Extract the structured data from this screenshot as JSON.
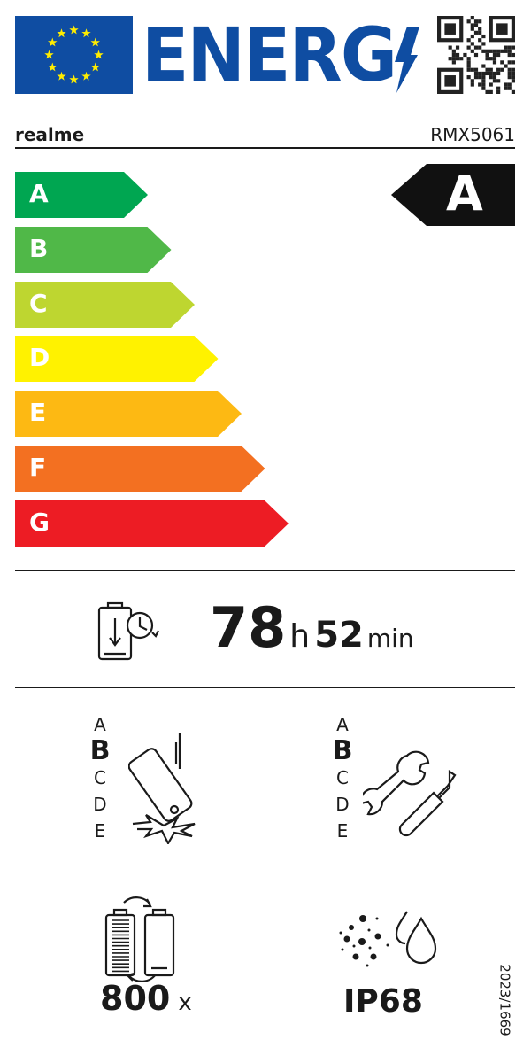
{
  "header": {
    "title": "ENERG",
    "eu_flag": "eu-flag-icon",
    "qr": "qr-code-icon"
  },
  "supplier": {
    "brand": "realme",
    "model": "RMX5061"
  },
  "energy_scale": {
    "classes": [
      {
        "label": "A",
        "color": "#00a651"
      },
      {
        "label": "B",
        "color": "#50b848"
      },
      {
        "label": "C",
        "color": "#bed630"
      },
      {
        "label": "D",
        "color": "#fff200"
      },
      {
        "label": "E",
        "color": "#fdb913"
      },
      {
        "label": "F",
        "color": "#f37021"
      },
      {
        "label": "G",
        "color": "#ed1c24"
      }
    ],
    "rating": "A"
  },
  "battery_endurance": {
    "hours": "78",
    "hours_unit": "h",
    "minutes": "52",
    "minutes_unit": "min"
  },
  "drop_resistance": {
    "scale": [
      "A",
      "B",
      "C",
      "D",
      "E"
    ],
    "selected": "B"
  },
  "repairability": {
    "scale": [
      "A",
      "B",
      "C",
      "D",
      "E"
    ],
    "selected": "B"
  },
  "battery_cycles": {
    "value": "800",
    "unit": "x"
  },
  "ingress_protection": {
    "value": "IP68"
  },
  "regulation": "2023/1669"
}
